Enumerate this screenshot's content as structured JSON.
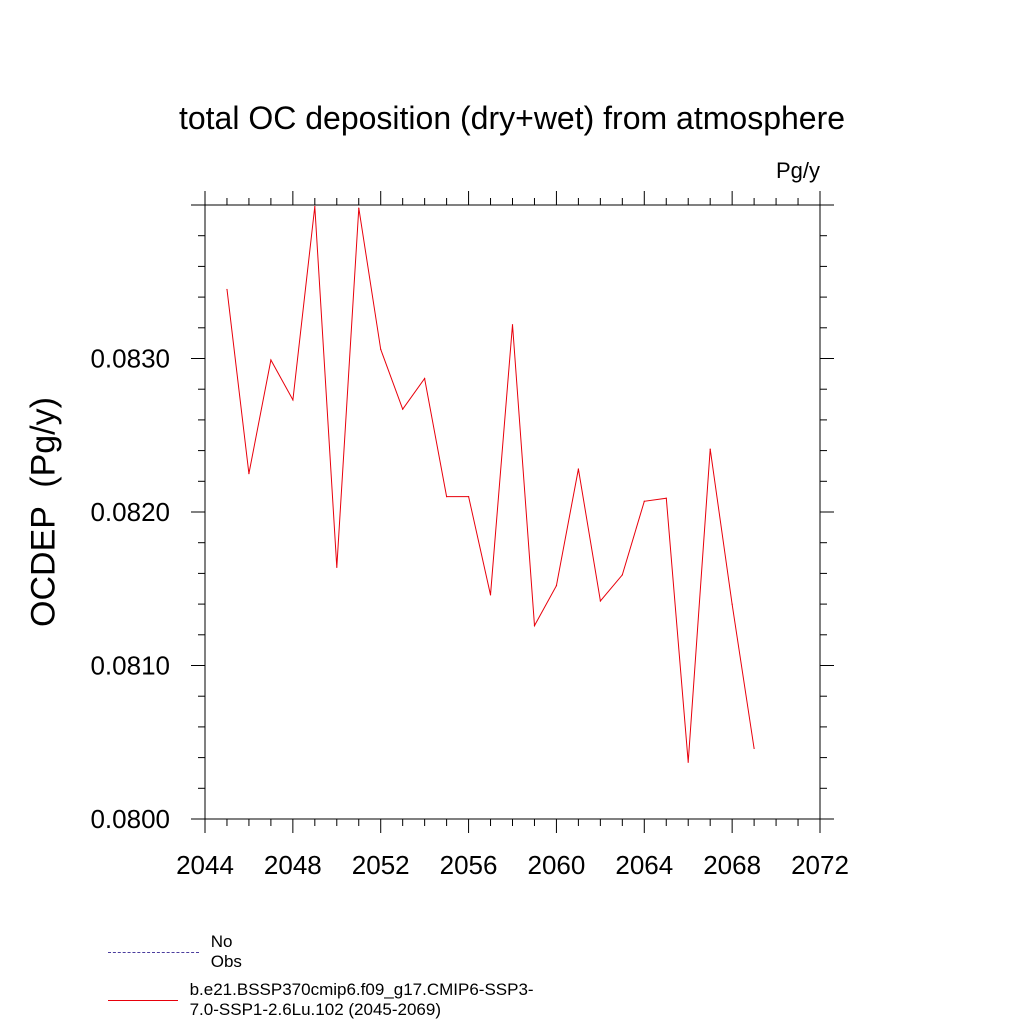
{
  "chart_data": {
    "type": "line",
    "title": "total OC deposition (dry+wet) from atmosphere",
    "units": "Pg/y",
    "ylabel": "OCDEP  (Pg/y)",
    "xlabel": "",
    "xlim": [
      2044,
      2072
    ],
    "ylim": [
      0.08,
      0.084
    ],
    "x_ticks": [
      "2044",
      "2048",
      "2052",
      "2056",
      "2060",
      "2064",
      "2068",
      "2072"
    ],
    "y_ticks": [
      "0.0800",
      "0.0810",
      "0.0820",
      "0.0830"
    ],
    "series": [
      {
        "name": "b.e21.BSSP370cmip6.f09_g17.CMIP6-SSP3-7.0-SSP1-2.6Lu.102 (2045-2069)",
        "color": "#e8000b",
        "x": [
          2045,
          2046,
          2047,
          2048,
          2049,
          2050,
          2051,
          2052,
          2053,
          2054,
          2055,
          2056,
          2057,
          2058,
          2059,
          2060,
          2061,
          2062,
          2063,
          2064,
          2065,
          2066,
          2067,
          2068,
          2069
        ],
        "values": [
          0.08345,
          0.08225,
          0.08299,
          0.08273,
          0.08399,
          0.08164,
          0.08398,
          0.08306,
          0.08267,
          0.08287,
          0.0821,
          0.0821,
          0.08146,
          0.08322,
          0.08126,
          0.08152,
          0.08228,
          0.08142,
          0.08159,
          0.08207,
          0.08209,
          0.08037,
          0.08241,
          0.0814,
          0.08046
        ]
      }
    ],
    "legend": [
      {
        "label": "No Obs",
        "style": "dashed",
        "color": "#4b3d9e"
      },
      {
        "label": "b.e21.BSSP370cmip6.f09_g17.CMIP6-SSP3-7.0-SSP1-2.6Lu.102 (2045-2069)",
        "style": "solid",
        "color": "#e8000b"
      }
    ]
  }
}
